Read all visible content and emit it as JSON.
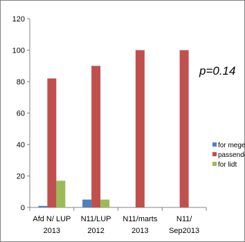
{
  "chart_data": {
    "type": "bar",
    "categories": [
      [
        "Afd N/ LUP",
        "2013"
      ],
      [
        "N11/LUP",
        "2012"
      ],
      [
        "N11/marts",
        "2013"
      ],
      [
        "N11/",
        "Sep2013"
      ]
    ],
    "series": [
      {
        "name": "for meget",
        "color": "#4f81bd",
        "values": [
          1,
          5,
          0,
          0
        ]
      },
      {
        "name": "passende",
        "color": "#c0504d",
        "values": [
          82,
          90,
          100,
          100
        ]
      },
      {
        "name": "for lidt",
        "color": "#9bbb59",
        "values": [
          17,
          5,
          0,
          0
        ]
      }
    ],
    "yticks": [
      0,
      20,
      40,
      60,
      80,
      100,
      120
    ],
    "ylim": [
      0,
      120
    ],
    "grid": false,
    "legend": "right",
    "annotation": "p=0.14",
    "title": "",
    "xlabel": "",
    "ylabel": ""
  }
}
